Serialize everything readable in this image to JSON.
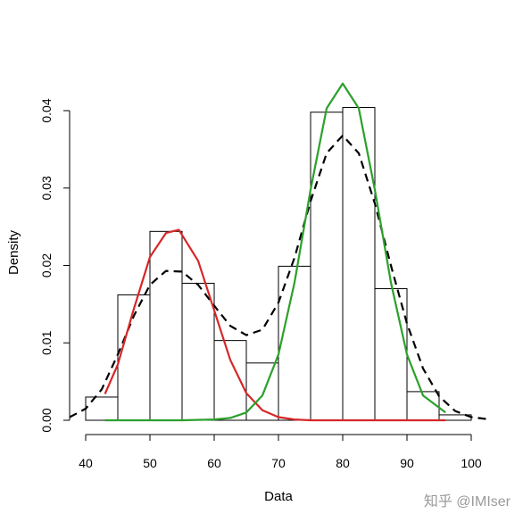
{
  "chart_data": {
    "type": "bar",
    "xlabel": "Data",
    "ylabel": "Density",
    "xlim": [
      37.5,
      103.5
    ],
    "ylim": [
      0,
      0.0445
    ],
    "x_ticks": [
      40,
      50,
      60,
      70,
      80,
      90,
      100
    ],
    "x_tick_labels": [
      "40",
      "50",
      "60",
      "70",
      "80",
      "90",
      "100"
    ],
    "y_ticks": [
      0.0,
      0.01,
      0.02,
      0.03,
      0.04
    ],
    "y_tick_labels": [
      "0.00",
      "0.01",
      "0.02",
      "0.03",
      "0.04"
    ],
    "histogram": {
      "bins": [
        {
          "from": 40,
          "to": 45,
          "density": 0.003
        },
        {
          "from": 45,
          "to": 50,
          "density": 0.0162
        },
        {
          "from": 50,
          "to": 55,
          "density": 0.0244
        },
        {
          "from": 55,
          "to": 60,
          "density": 0.0177
        },
        {
          "from": 60,
          "to": 65,
          "density": 0.0103
        },
        {
          "from": 65,
          "to": 70,
          "density": 0.0074
        },
        {
          "from": 70,
          "to": 75,
          "density": 0.0199
        },
        {
          "from": 75,
          "to": 80,
          "density": 0.0398
        },
        {
          "from": 80,
          "to": 85,
          "density": 0.0404
        },
        {
          "from": 85,
          "to": 90,
          "density": 0.017
        },
        {
          "from": 90,
          "to": 95,
          "density": 0.0037
        },
        {
          "from": 95,
          "to": 100,
          "density": 0.0007
        }
      ]
    },
    "series": [
      {
        "style": "dashed",
        "color": "#000000",
        "x": [
          37.5,
          40,
          42.5,
          45,
          47.5,
          50,
          52.5,
          55,
          57.5,
          60,
          62.5,
          65,
          67.5,
          70,
          72.5,
          75,
          77.5,
          80,
          82.5,
          85,
          87.5,
          90,
          92.5,
          95,
          97.5,
          100,
          103
        ],
        "values": [
          0.0004,
          0.0015,
          0.004,
          0.0085,
          0.0135,
          0.0175,
          0.0193,
          0.0192,
          0.0175,
          0.0148,
          0.0122,
          0.011,
          0.0117,
          0.0152,
          0.021,
          0.0283,
          0.0345,
          0.0368,
          0.0345,
          0.028,
          0.02,
          0.0125,
          0.0067,
          0.0031,
          0.0012,
          0.0004,
          0.0001
        ]
      },
      {
        "style": "solid",
        "color": "#d62728",
        "x": [
          43,
          45,
          47.5,
          50,
          52.5,
          54.5,
          57.5,
          60,
          62.5,
          65,
          67.5,
          70,
          72.5,
          75,
          80,
          85,
          90,
          96
        ],
        "values": [
          0.0034,
          0.0072,
          0.0144,
          0.0211,
          0.0242,
          0.0246,
          0.0206,
          0.0142,
          0.0078,
          0.0035,
          0.0013,
          0.0004,
          0.0001,
          0.0,
          0.0,
          0.0,
          0.0,
          0.0
        ]
      },
      {
        "style": "solid",
        "color": "#2ca02c",
        "x": [
          43,
          50,
          55,
          60,
          62.5,
          65,
          67.5,
          70,
          72.5,
          75,
          77.5,
          80,
          82.5,
          85,
          87.5,
          90,
          92.5,
          96
        ],
        "values": [
          0.0,
          0.0,
          0.0,
          0.0001,
          0.0003,
          0.001,
          0.0032,
          0.0085,
          0.0178,
          0.0298,
          0.0403,
          0.0435,
          0.0403,
          0.0298,
          0.0178,
          0.0085,
          0.0032,
          0.001
        ]
      }
    ]
  },
  "watermark": "知乎 @IMIser"
}
